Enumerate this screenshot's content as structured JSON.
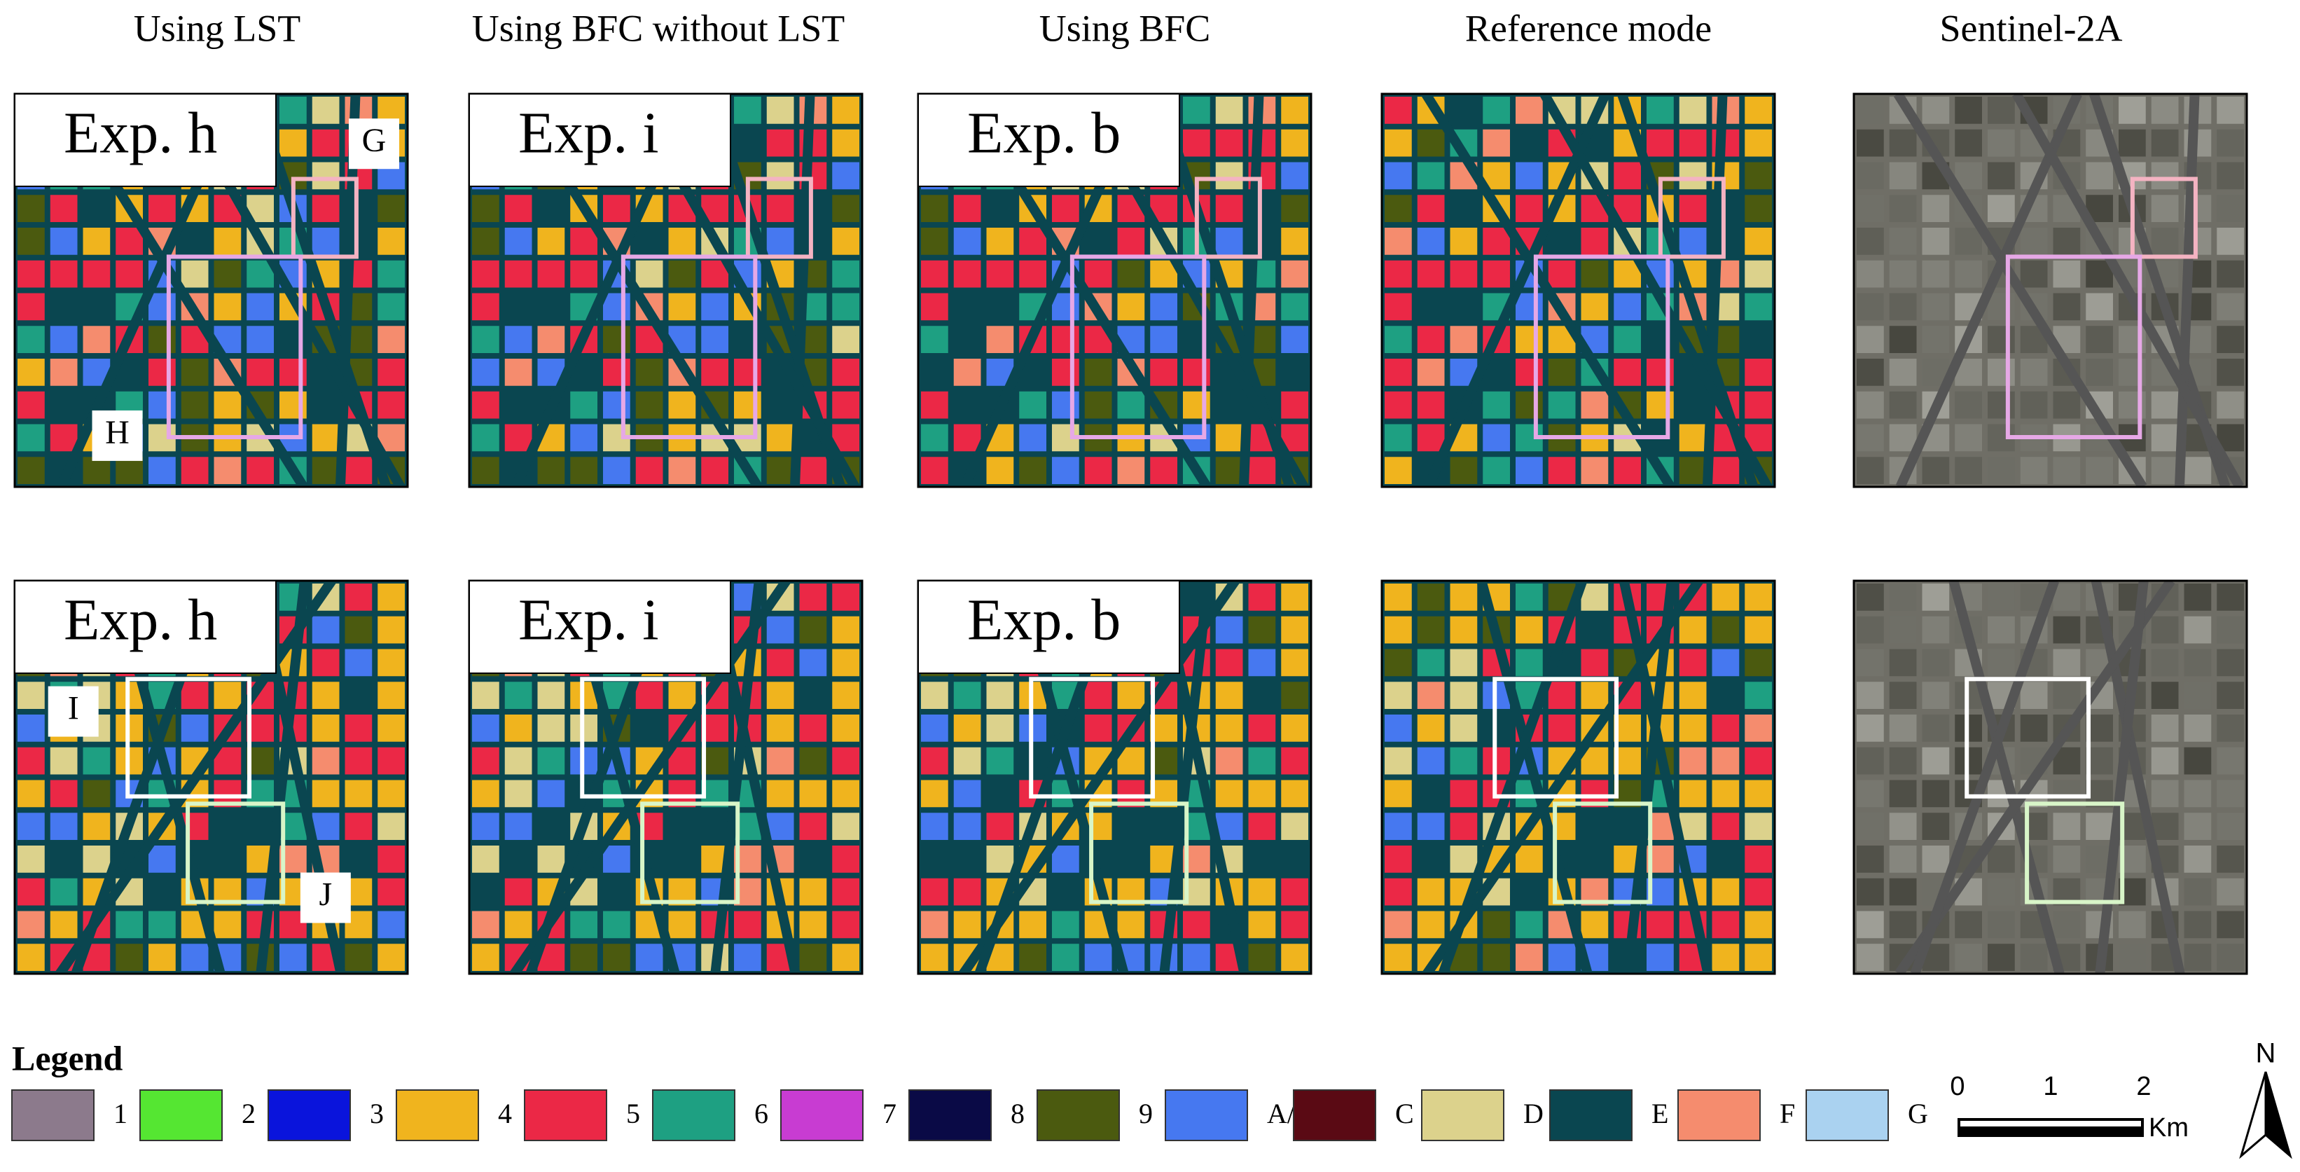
{
  "columns": [
    "Using LST",
    "Using BFC without LST",
    "Using BFC",
    "Reference mode",
    "Sentinel-2A"
  ],
  "rows": [
    {
      "labels": [
        "Exp. h",
        "Exp. i",
        "Exp. b"
      ],
      "regions": [
        "G",
        "H"
      ]
    },
    {
      "labels": [
        "Exp. h",
        "Exp. i",
        "Exp. b"
      ],
      "regions": [
        "I",
        "J"
      ]
    }
  ],
  "legend": {
    "title": "Legend",
    "items": [
      {
        "label": "1",
        "color": "#8c7a8c"
      },
      {
        "label": "2",
        "color": "#55e632"
      },
      {
        "label": "3",
        "color": "#0a14dc"
      },
      {
        "label": "4",
        "color": "#f0b41e"
      },
      {
        "label": "5",
        "color": "#eb2846"
      },
      {
        "label": "6",
        "color": "#1ea082"
      },
      {
        "label": "7",
        "color": "#c83cd2"
      },
      {
        "label": "8",
        "color": "#0a0a46"
      },
      {
        "label": "9",
        "color": "#4b5a0f"
      },
      {
        "label": "A/B",
        "color": "#4678f0"
      },
      {
        "label": "C",
        "color": "#5a0a14"
      },
      {
        "label": "D",
        "color": "#dcd28c"
      },
      {
        "label": "E",
        "color": "#0a4650"
      },
      {
        "label": "F",
        "color": "#f58c6e"
      },
      {
        "label": "G",
        "color": "#aad2f0"
      }
    ]
  },
  "scale_bar": {
    "labels": [
      "0",
      "1",
      "2"
    ],
    "unit": "Km"
  },
  "north": "N"
}
